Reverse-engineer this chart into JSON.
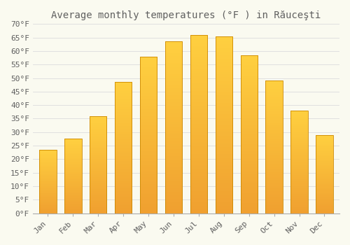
{
  "title": "Average monthly temperatures (°F ) in Răuceşti",
  "months": [
    "Jan",
    "Feb",
    "Mar",
    "Apr",
    "May",
    "Jun",
    "Jul",
    "Aug",
    "Sep",
    "Oct",
    "Nov",
    "Dec"
  ],
  "values": [
    23.5,
    27.5,
    36.0,
    48.5,
    58.0,
    63.5,
    66.0,
    65.5,
    58.5,
    49.0,
    38.0,
    29.0
  ],
  "bar_color_bottom": "#F0A030",
  "bar_color_top": "#FFD040",
  "bar_edge_color": "#CC8800",
  "background_color": "#FAFAF0",
  "grid_color": "#E0E0E0",
  "text_color": "#606060",
  "ylim": [
    0,
    70
  ],
  "ytick_step": 5,
  "title_fontsize": 10,
  "tick_fontsize": 8
}
